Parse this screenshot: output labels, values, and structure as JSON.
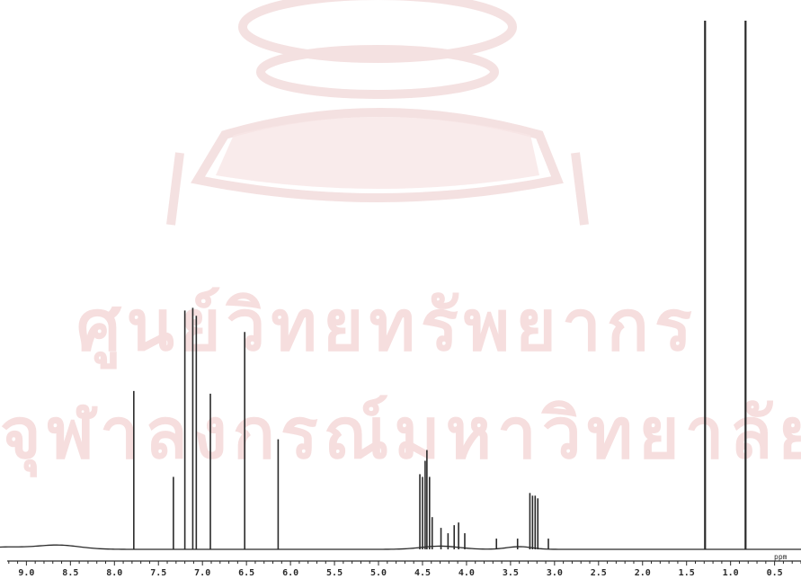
{
  "watermark": {
    "line1": "ศูนย์วิทยทรัพยากร",
    "line2": "จุฬาลงกรณ์มหาวิทยาลัย"
  },
  "colors": {
    "trace": "#2a2a2a",
    "watermark": "#f6dede",
    "seal": "#f3dede"
  },
  "chart_data": {
    "type": "line",
    "title": "",
    "xlabel": "ppm",
    "ylabel": "",
    "x_axis_reversed": true,
    "xlim": [
      9.3,
      0.2
    ],
    "ylim": [
      0,
      1.0
    ],
    "grid": false,
    "xticks": [
      9.0,
      8.5,
      8.0,
      7.5,
      7.0,
      6.5,
      6.0,
      5.5,
      5.0,
      4.5,
      4.0,
      3.5,
      3.0,
      2.5,
      2.0,
      1.5,
      1.0,
      0.5
    ],
    "xtick_labels": [
      "9.0",
      "8.5",
      "8.0",
      "7.5",
      "7.0",
      "6.5",
      "6.0",
      "5.5",
      "5.0",
      "4.5",
      "4.0",
      "3.5",
      "3.0",
      "2.5",
      "2.0",
      "1.5",
      "1.0",
      "0.5"
    ],
    "peaks": [
      {
        "x": 7.78,
        "height": 0.295
      },
      {
        "x": 7.33,
        "height": 0.135
      },
      {
        "x": 7.2,
        "height": 0.445
      },
      {
        "x": 7.11,
        "height": 0.45
      },
      {
        "x": 7.07,
        "height": 0.435
      },
      {
        "x": 6.91,
        "height": 0.29
      },
      {
        "x": 6.52,
        "height": 0.405
      },
      {
        "x": 6.14,
        "height": 0.205
      },
      {
        "x": 4.53,
        "height": 0.14
      },
      {
        "x": 4.5,
        "height": 0.135
      },
      {
        "x": 4.47,
        "height": 0.165
      },
      {
        "x": 4.45,
        "height": 0.185
      },
      {
        "x": 4.42,
        "height": 0.135
      },
      {
        "x": 4.39,
        "height": 0.06
      },
      {
        "x": 4.29,
        "height": 0.04
      },
      {
        "x": 4.21,
        "height": 0.03
      },
      {
        "x": 4.14,
        "height": 0.045
      },
      {
        "x": 4.09,
        "height": 0.05
      },
      {
        "x": 4.02,
        "height": 0.03
      },
      {
        "x": 3.66,
        "height": 0.02
      },
      {
        "x": 3.42,
        "height": 0.02
      },
      {
        "x": 3.28,
        "height": 0.105
      },
      {
        "x": 3.25,
        "height": 0.1
      },
      {
        "x": 3.22,
        "height": 0.1
      },
      {
        "x": 3.19,
        "height": 0.095
      },
      {
        "x": 3.07,
        "height": 0.02
      },
      {
        "x": 1.29,
        "height": 0.985
      },
      {
        "x": 0.83,
        "height": 0.985
      }
    ]
  }
}
